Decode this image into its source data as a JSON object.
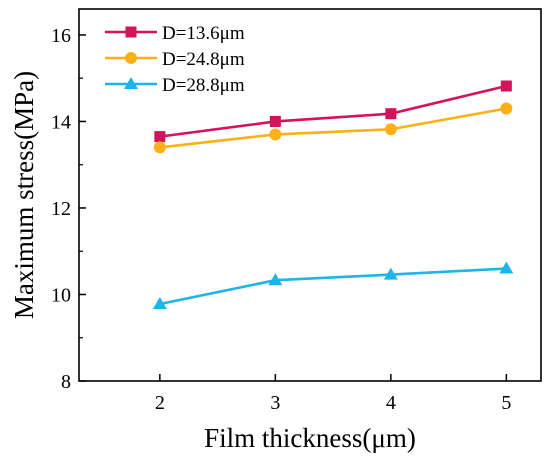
{
  "chart_data": {
    "type": "line",
    "xlabel": "Film thickness(μm)",
    "ylabel": "Maximum stress(MPa)",
    "x": [
      2,
      3,
      4,
      5
    ],
    "xlim": [
      1.3,
      5.3
    ],
    "ylim": [
      8,
      16.6
    ],
    "xticks": [
      2,
      3,
      4,
      5
    ],
    "yticks": [
      8,
      10,
      12,
      14,
      16
    ],
    "grid": false,
    "legend_position": "top-left",
    "series": [
      {
        "name": "D=13.6μm",
        "values": [
          13.65,
          14.0,
          14.18,
          14.82
        ],
        "color": "#d4145a",
        "marker": "square"
      },
      {
        "name": "D=24.8μm",
        "values": [
          13.4,
          13.7,
          13.82,
          14.3
        ],
        "color": "#fbb116",
        "marker": "circle"
      },
      {
        "name": "D=28.8μm",
        "values": [
          9.78,
          10.33,
          10.46,
          10.6
        ],
        "color": "#1fb5e8",
        "marker": "triangle"
      }
    ]
  }
}
